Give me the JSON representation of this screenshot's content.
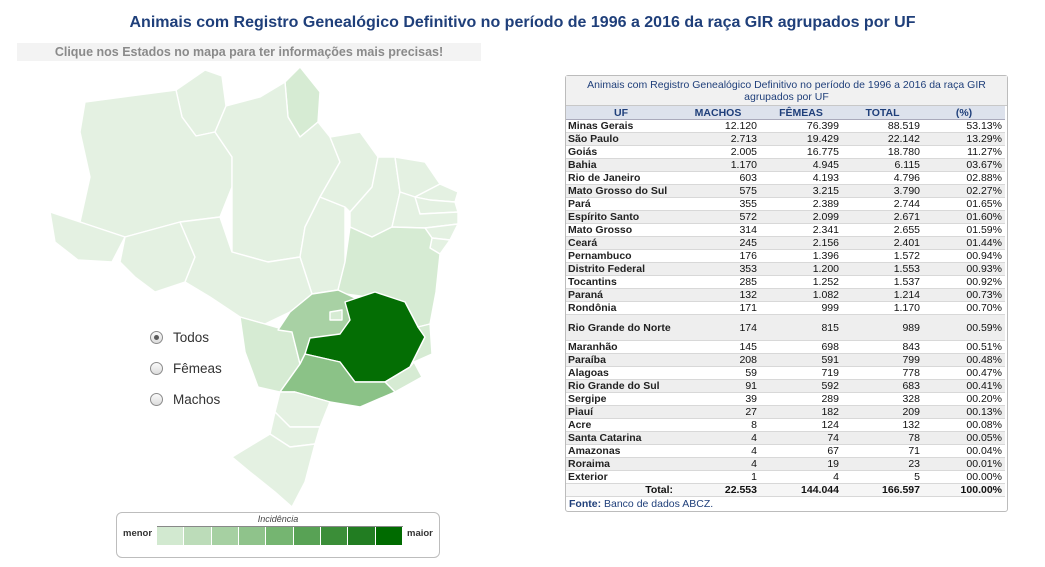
{
  "header": {
    "title": "Animais com Registro Genealógico Definitivo no período de 1996 a 2016 da raça GIR agrupados por UF",
    "map_hint": "Clique nos Estados no mapa para ter informações mais precisas!"
  },
  "filter": {
    "options": [
      {
        "label": "Todos",
        "selected": true
      },
      {
        "label": "Fêmeas",
        "selected": false
      },
      {
        "label": "Machos",
        "selected": false
      }
    ]
  },
  "legend": {
    "title": "Incidência",
    "min_label": "menor",
    "max_label": "maior",
    "colors": [
      "#d2e9d0",
      "#bcdcb9",
      "#a6d0a2",
      "#8fc38b",
      "#75b571",
      "#58a255",
      "#3b8e38",
      "#227d22",
      "#006b00"
    ]
  },
  "map": {
    "highlight_state": "Minas Gerais",
    "colors": {
      "base": "#e4f1e2",
      "light": "#d6ebd3",
      "mid": "#a8d1a4",
      "strong": "#8bc287",
      "max": "#046e04"
    }
  },
  "table": {
    "title": "Animais com Registro Genealógico Definitivo no período de 1996 a 2016 da raça GIR agrupados por UF",
    "headers": [
      "UF",
      "MACHOS",
      "FÊMEAS",
      "TOTAL",
      "(%)"
    ],
    "rows": [
      [
        "Minas Gerais",
        "12.120",
        "76.399",
        "88.519",
        "53.13%"
      ],
      [
        "São Paulo",
        "2.713",
        "19.429",
        "22.142",
        "13.29%"
      ],
      [
        "Goiás",
        "2.005",
        "16.775",
        "18.780",
        "11.27%"
      ],
      [
        "Bahia",
        "1.170",
        "4.945",
        "6.115",
        "03.67%"
      ],
      [
        "Rio de Janeiro",
        "603",
        "4.193",
        "4.796",
        "02.88%"
      ],
      [
        "Mato Grosso do Sul",
        "575",
        "3.215",
        "3.790",
        "02.27%"
      ],
      [
        "Pará",
        "355",
        "2.389",
        "2.744",
        "01.65%"
      ],
      [
        "Espírito Santo",
        "572",
        "2.099",
        "2.671",
        "01.60%"
      ],
      [
        "Mato Grosso",
        "314",
        "2.341",
        "2.655",
        "01.59%"
      ],
      [
        "Ceará",
        "245",
        "2.156",
        "2.401",
        "01.44%"
      ],
      [
        "Pernambuco",
        "176",
        "1.396",
        "1.572",
        "00.94%"
      ],
      [
        "Distrito Federal",
        "353",
        "1.200",
        "1.553",
        "00.93%"
      ],
      [
        "Tocantins",
        "285",
        "1.252",
        "1.537",
        "00.92%"
      ],
      [
        "Paraná",
        "132",
        "1.082",
        "1.214",
        "00.73%"
      ],
      [
        "Rondônia",
        "171",
        "999",
        "1.170",
        "00.70%"
      ],
      [
        "Rio Grande do Norte",
        "174",
        "815",
        "989",
        "00.59%"
      ],
      [
        "Maranhão",
        "145",
        "698",
        "843",
        "00.51%"
      ],
      [
        "Paraíba",
        "208",
        "591",
        "799",
        "00.48%"
      ],
      [
        "Alagoas",
        "59",
        "719",
        "778",
        "00.47%"
      ],
      [
        "Rio Grande do Sul",
        "91",
        "592",
        "683",
        "00.41%"
      ],
      [
        "Sergipe",
        "39",
        "289",
        "328",
        "00.20%"
      ],
      [
        "Piauí",
        "27",
        "182",
        "209",
        "00.13%"
      ],
      [
        "Acre",
        "8",
        "124",
        "132",
        "00.08%"
      ],
      [
        "Santa Catarina",
        "4",
        "74",
        "78",
        "00.05%"
      ],
      [
        "Amazonas",
        "4",
        "67",
        "71",
        "00.04%"
      ],
      [
        "Roraima",
        "4",
        "19",
        "23",
        "00.01%"
      ],
      [
        "Exterior",
        "1",
        "4",
        "5",
        "00.00%"
      ]
    ],
    "total": {
      "label": "Total:",
      "machos": "22.553",
      "femeas": "144.044",
      "total": "166.597",
      "pct": "100.00%"
    },
    "source_label": "Fonte:",
    "source_text": "Banco de dados ABCZ."
  }
}
